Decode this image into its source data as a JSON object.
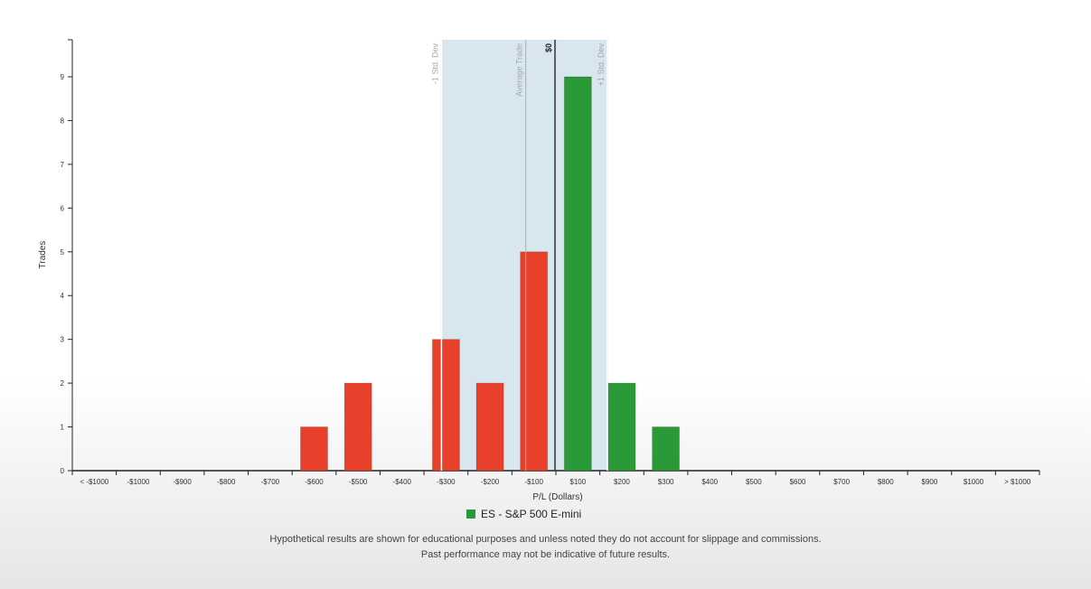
{
  "chart_data": {
    "type": "bar",
    "categories": [
      "< -$1000",
      "-$1000",
      "-$900",
      "-$800",
      "-$700",
      "-$600",
      "-$500",
      "-$400",
      "-$300",
      "-$200",
      "-$100",
      "$100",
      "$200",
      "$300",
      "$400",
      "$500",
      "$600",
      "$700",
      "$800",
      "$900",
      "$1000",
      "> $1000"
    ],
    "values": [
      0,
      0,
      0,
      0,
      0,
      1,
      2,
      0,
      3,
      2,
      5,
      9,
      2,
      1,
      0,
      0,
      0,
      0,
      0,
      0,
      0,
      0
    ],
    "xlabel": "P/L (Dollars)",
    "ylabel": "Trades",
    "ylim": [
      0,
      9
    ],
    "yticks": [
      0,
      1,
      2,
      3,
      4,
      5,
      6,
      7,
      8,
      9
    ],
    "colors": {
      "loss": "#e8402a",
      "profit": "#2a9a38",
      "band": "#d8e6f0"
    },
    "series": [
      {
        "name": "ES - S&P 500 E-mini",
        "color": "#2a9a38"
      }
    ],
    "reference_lines": {
      "minus_std": {
        "label": "-1 Std. Dev",
        "value": -300
      },
      "average": {
        "label": "Average Trade",
        "value": -100
      },
      "zero": {
        "label": "$0",
        "value": 0
      },
      "plus_std": {
        "label": "+1 Std. Dev",
        "value": 200
      }
    }
  },
  "legend": {
    "label": "ES - S&P 500 E-mini",
    "color": "#2a9a38"
  },
  "disclaimer": {
    "line1": "Hypothetical results are shown for educational purposes and unless noted they do not account for slippage and commissions.",
    "line2": "Past performance may not be indicative of future results."
  }
}
